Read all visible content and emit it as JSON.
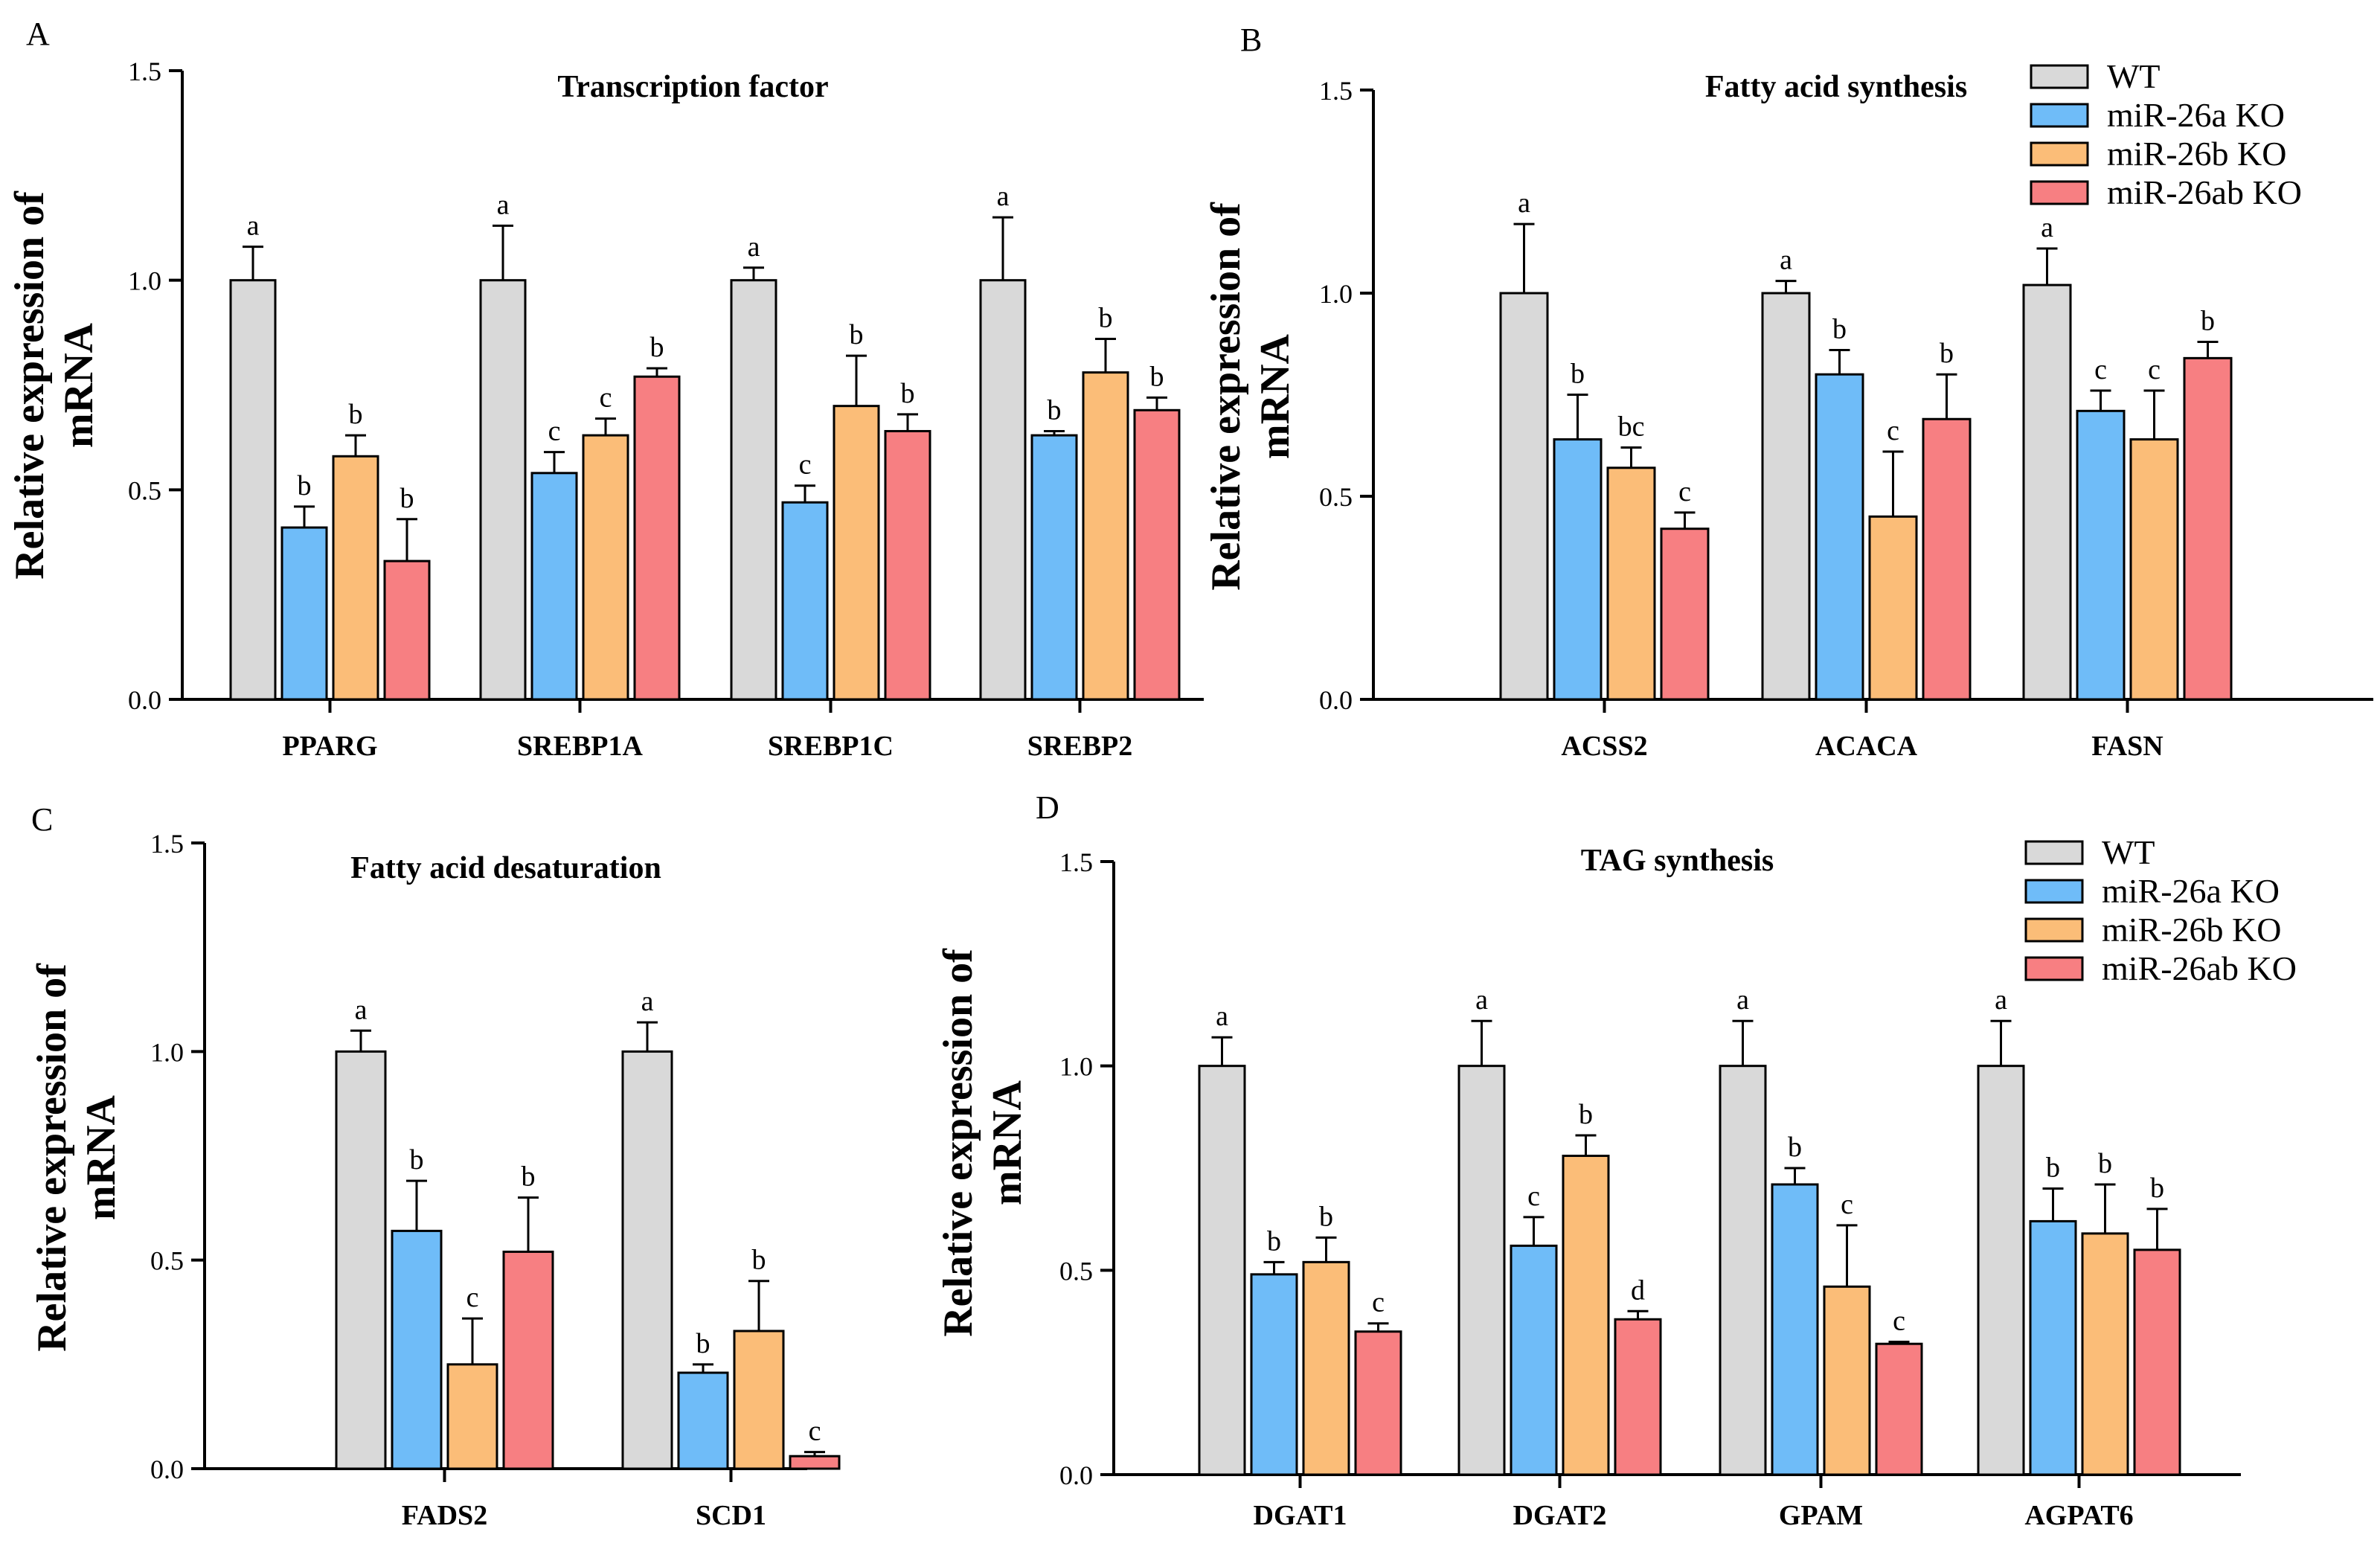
{
  "figure": {
    "legend": [
      {
        "name": "WT",
        "color": "#d9d9d9"
      },
      {
        "name": "miR-26a KO",
        "color": "#6fbcf8"
      },
      {
        "name": "miR-26b KO",
        "color": "#fbbd78"
      },
      {
        "name": "miR-26ab KO",
        "color": "#f77f82"
      }
    ]
  },
  "chart_data": [
    {
      "panel": "A",
      "type": "bar",
      "title": "Transcription factor",
      "ylabel": "Relative expression of mRNA",
      "ylim": [
        0,
        1.5
      ],
      "yticks": [
        "0.0",
        "0.5",
        "1.0",
        "1.5"
      ],
      "categories": [
        "PPARG",
        "SREBP1A",
        "SREBP1C",
        "SREBP2"
      ],
      "series": [
        {
          "name": "WT",
          "values": [
            1.0,
            1.0,
            1.0,
            1.0
          ],
          "errors": [
            0.08,
            0.13,
            0.03,
            0.15
          ],
          "letters": [
            "a",
            "a",
            "a",
            "a"
          ]
        },
        {
          "name": "miR-26a KO",
          "values": [
            0.41,
            0.54,
            0.47,
            0.63
          ],
          "errors": [
            0.05,
            0.05,
            0.04,
            0.01
          ],
          "letters": [
            "b",
            "c",
            "c",
            "b"
          ]
        },
        {
          "name": "miR-26b KO",
          "values": [
            0.58,
            0.63,
            0.7,
            0.78
          ],
          "errors": [
            0.05,
            0.04,
            0.12,
            0.08
          ],
          "letters": [
            "b",
            "c",
            "b",
            "b"
          ]
        },
        {
          "name": "miR-26ab KO",
          "values": [
            0.33,
            0.77,
            0.64,
            0.69
          ],
          "errors": [
            0.1,
            0.02,
            0.04,
            0.03
          ],
          "letters": [
            "b",
            "b",
            "b",
            "b"
          ]
        }
      ]
    },
    {
      "panel": "B",
      "type": "bar",
      "title": "Fatty acid synthesis",
      "ylabel": "Relative expression of mRNA",
      "ylim": [
        0,
        1.5
      ],
      "yticks": [
        "0.0",
        "0.5",
        "1.0",
        "1.5"
      ],
      "categories": [
        "ACSS2",
        "ACACA",
        "FASN"
      ],
      "series": [
        {
          "name": "WT",
          "values": [
            1.0,
            1.0,
            1.02
          ],
          "errors": [
            0.17,
            0.03,
            0.09
          ],
          "letters": [
            "a",
            "a",
            "a"
          ]
        },
        {
          "name": "miR-26a KO",
          "values": [
            0.64,
            0.8,
            0.71
          ],
          "errors": [
            0.11,
            0.06,
            0.05
          ],
          "letters": [
            "b",
            "b",
            "c"
          ]
        },
        {
          "name": "miR-26b KO",
          "values": [
            0.57,
            0.45,
            0.64
          ],
          "errors": [
            0.05,
            0.16,
            0.12
          ],
          "letters": [
            "bc",
            "c",
            "c"
          ]
        },
        {
          "name": "miR-26ab KO",
          "values": [
            0.42,
            0.69,
            0.84
          ],
          "errors": [
            0.04,
            0.11,
            0.04
          ],
          "letters": [
            "c",
            "b",
            "b"
          ]
        }
      ]
    },
    {
      "panel": "C",
      "type": "bar",
      "title": "Fatty acid desaturation",
      "ylabel": "Relative expression of mRNA",
      "ylim": [
        0,
        1.5
      ],
      "yticks": [
        "0.0",
        "0.5",
        "1.0",
        "1.5"
      ],
      "categories": [
        "FADS2",
        "SCD1"
      ],
      "series": [
        {
          "name": "WT",
          "values": [
            1.0,
            1.0
          ],
          "errors": [
            0.05,
            0.07
          ],
          "letters": [
            "a",
            "a"
          ]
        },
        {
          "name": "miR-26a KO",
          "values": [
            0.57,
            0.23
          ],
          "errors": [
            0.12,
            0.02
          ],
          "letters": [
            "b",
            "b"
          ]
        },
        {
          "name": "miR-26b KO",
          "values": [
            0.25,
            0.33
          ],
          "errors": [
            0.11,
            0.12
          ],
          "letters": [
            "c",
            "b"
          ]
        },
        {
          "name": "miR-26ab KO",
          "values": [
            0.52,
            0.03
          ],
          "errors": [
            0.13,
            0.01
          ],
          "letters": [
            "b",
            "c"
          ]
        }
      ]
    },
    {
      "panel": "D",
      "type": "bar",
      "title": "TAG synthesis",
      "ylabel": "Relative expression of mRNA",
      "ylim": [
        0,
        1.5
      ],
      "yticks": [
        "0.0",
        "0.5",
        "1.0",
        "1.5"
      ],
      "categories": [
        "DGAT1",
        "DGAT2",
        "GPAM",
        "AGPAT6"
      ],
      "series": [
        {
          "name": "WT",
          "values": [
            1.0,
            1.0,
            1.0,
            1.0
          ],
          "errors": [
            0.07,
            0.11,
            0.11,
            0.11
          ],
          "letters": [
            "a",
            "a",
            "a",
            "a"
          ]
        },
        {
          "name": "miR-26a KO",
          "values": [
            0.49,
            0.56,
            0.71,
            0.62
          ],
          "errors": [
            0.03,
            0.07,
            0.04,
            0.08
          ],
          "letters": [
            "b",
            "c",
            "b",
            "b"
          ]
        },
        {
          "name": "miR-26b KO",
          "values": [
            0.52,
            0.78,
            0.46,
            0.59
          ],
          "errors": [
            0.06,
            0.05,
            0.15,
            0.12
          ],
          "letters": [
            "b",
            "b",
            "c",
            "b"
          ]
        },
        {
          "name": "miR-26ab KO",
          "values": [
            0.35,
            0.38,
            0.32,
            0.55
          ],
          "errors": [
            0.02,
            0.02,
            0.005,
            0.1
          ],
          "letters": [
            "c",
            "d",
            "c",
            "b"
          ]
        }
      ]
    }
  ]
}
